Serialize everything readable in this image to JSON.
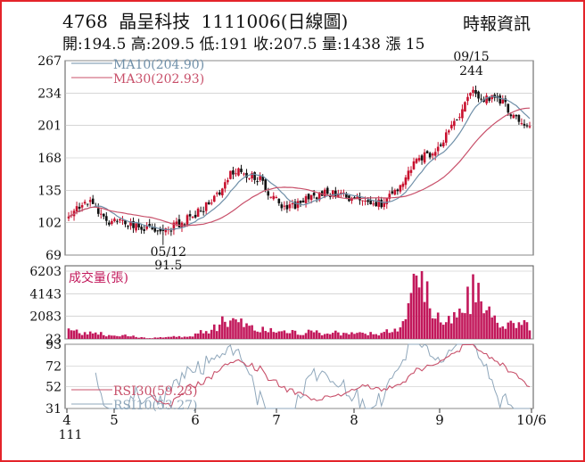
{
  "header": {
    "code": "4768",
    "name": "晶呈科技",
    "date_label": "1111006(日線圖)",
    "source": "時報資訊",
    "quote_line": "開:194.5 高:209.5 低:191 收:207.5 量:1438 漲 15"
  },
  "colors": {
    "frame": "#e4232a",
    "up_candle": "#c8102e",
    "down_candle": "#111111",
    "ma10": "#6f8fa8",
    "ma30": "#c8506a",
    "volume": "#c2185b",
    "rsi30": "#c8506a",
    "rsi10": "#8fa7bb",
    "grid": "#bdbdbd"
  },
  "chart_data": [
    {
      "type": "candlestick",
      "panel": "price",
      "legend": [
        {
          "name": "MA10",
          "label": "MA10(204.90)"
        },
        {
          "name": "MA30",
          "label": "MA30(202.93)"
        }
      ],
      "y_ticks": [
        267,
        234,
        201,
        168,
        135,
        102,
        69
      ],
      "ylim": [
        69,
        267
      ],
      "x_ticks": [
        "4",
        "5",
        "6",
        "7",
        "8",
        "9",
        "10/6"
      ],
      "x_sub_label": "111",
      "annotations": [
        {
          "label": "05/12",
          "value": "91.5"
        },
        {
          "label": "09/15",
          "value": "244"
        }
      ],
      "grid": true
    },
    {
      "type": "bar",
      "panel": "volume",
      "title": "成交量(張)",
      "y_ticks": [
        6203,
        4143,
        2083,
        23
      ],
      "ylim": [
        23,
        6203
      ]
    },
    {
      "type": "line",
      "panel": "rsi",
      "y_ticks": [
        93,
        72,
        52,
        31
      ],
      "ylim": [
        31,
        93
      ],
      "series": [
        {
          "name": "RSI30",
          "label": "RSI30(59.23)"
        },
        {
          "name": "RSI10",
          "label": "RSI10(53.27)"
        }
      ]
    }
  ]
}
